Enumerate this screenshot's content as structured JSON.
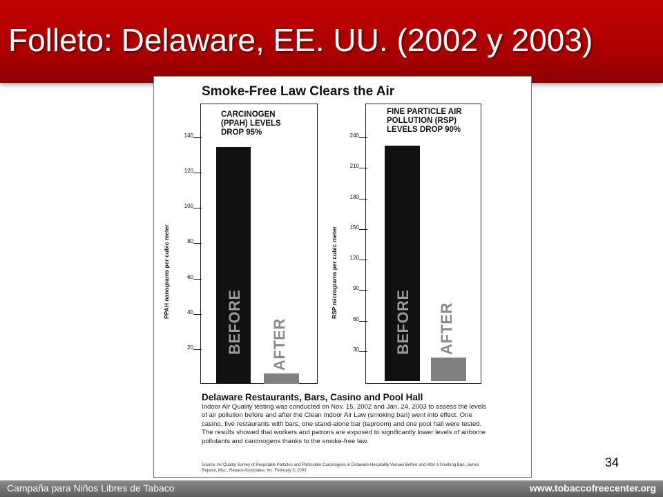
{
  "slide": {
    "title": "Folleto: Delaware, EE. UU. (2002 y 2003)",
    "footer_left": "Campaña para Niños Libres de Tabaco",
    "footer_right": "www.tobaccofreecenter.org",
    "page_number": "34"
  },
  "flyer": {
    "title": "Smoke-Free Law Clears the Air",
    "caption_title": "Delaware Restaurants, Bars, Casino and Pool Hall",
    "caption_body": "Indoor Air Quality testing was conducted on Nov. 15, 2002 and Jan. 24, 2003 to assess the levels of air pollution before and after the Clean Indoor Air Law (smoking ban) went into effect. One casino, five restaurants with bars, one stand-alone bar (taproom) and one pool hall were tested. The results showed that workers and patrons are exposed to significantly lower levels of airborne pollutants and carcinogens thanks to the smoke-free law.",
    "source": "Source: Air Quality Survey of Respirable Particles and Particulate Carcinogens in Delaware Hospitality Venues Before and After a Smoking Ban, James Repace, Msc., Repace Associates, Inc. February 3, 2003"
  },
  "colors": {
    "header_red": "#b00000",
    "before_bar": "#111111",
    "after_bar": "#808080"
  },
  "chart_data": [
    {
      "type": "bar",
      "title": "CARCINOGEN (PPAH) LEVELS DROP 95%",
      "ylabel": "PPAH nanograms per cubic meter",
      "categories": [
        "BEFORE",
        "AFTER"
      ],
      "values": [
        134,
        6
      ],
      "ylim": [
        0,
        140
      ],
      "yticks": [
        20,
        40,
        60,
        80,
        100,
        120,
        140
      ],
      "grid": false
    },
    {
      "type": "bar",
      "title": "FINE PARTICLE AIR POLLUTION (RSP) LEVELS DROP 90%",
      "ylabel": "RSP micrograms per cubic meter",
      "categories": [
        "BEFORE",
        "AFTER"
      ],
      "values": [
        231,
        23
      ],
      "ylim": [
        0,
        240
      ],
      "yticks": [
        30,
        60,
        90,
        120,
        150,
        180,
        210,
        240
      ],
      "grid": false
    }
  ]
}
